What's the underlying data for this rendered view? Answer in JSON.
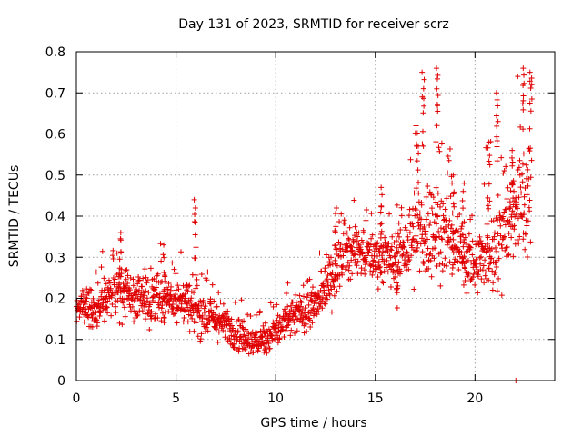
{
  "chart_data": {
    "type": "scatter",
    "title": "Day 131 of 2023, SRMTID for receiver scrz",
    "xlabel": "GPS time / hours",
    "ylabel": "SRMTID / TECUs",
    "xlim": [
      0,
      24
    ],
    "ylim": [
      0,
      0.8
    ],
    "xticks": [
      0,
      5,
      10,
      15,
      20
    ],
    "xtick_labels": [
      "0",
      "5",
      "10",
      "15",
      "20"
    ],
    "yticks": [
      0,
      0.1,
      0.2,
      0.3,
      0.4,
      0.5,
      0.6,
      0.7,
      0.8
    ],
    "ytick_labels": [
      "0",
      "0.1",
      "0.2",
      "0.3",
      "0.4",
      "0.5",
      "0.6",
      "0.7",
      "0.8"
    ],
    "grid": true,
    "marker": "+",
    "color": "#e00000",
    "series": [
      {
        "name": "SRMTID",
        "hourly_trend": {
          "x": [
            0,
            1,
            2,
            3,
            4,
            5,
            6,
            7,
            8,
            9,
            10,
            11,
            12,
            13,
            14,
            15,
            16,
            17,
            18,
            19,
            20,
            21,
            22,
            22.8
          ],
          "center": [
            0.18,
            0.17,
            0.22,
            0.2,
            0.2,
            0.2,
            0.17,
            0.15,
            0.12,
            0.09,
            0.12,
            0.16,
            0.18,
            0.27,
            0.32,
            0.3,
            0.29,
            0.35,
            0.38,
            0.33,
            0.28,
            0.33,
            0.42,
            0.45
          ],
          "spread": [
            0.05,
            0.06,
            0.07,
            0.07,
            0.07,
            0.07,
            0.07,
            0.06,
            0.05,
            0.04,
            0.05,
            0.06,
            0.06,
            0.07,
            0.07,
            0.07,
            0.08,
            0.15,
            0.15,
            0.1,
            0.09,
            0.13,
            0.15,
            0.15
          ]
        },
        "peaks": [
          {
            "x": 5.95,
            "y": 0.44
          },
          {
            "x": 2.2,
            "y": 0.36
          },
          {
            "x": 4.4,
            "y": 0.33
          },
          {
            "x": 13.0,
            "y": 0.42
          },
          {
            "x": 15.3,
            "y": 0.47
          },
          {
            "x": 16.1,
            "y": 0.34
          },
          {
            "x": 17.4,
            "y": 0.75
          },
          {
            "x": 18.1,
            "y": 0.76
          },
          {
            "x": 17.1,
            "y": 0.62
          },
          {
            "x": 18.9,
            "y": 0.5
          },
          {
            "x": 19.4,
            "y": 0.48
          },
          {
            "x": 21.1,
            "y": 0.7
          },
          {
            "x": 20.7,
            "y": 0.58
          },
          {
            "x": 22.4,
            "y": 0.76
          },
          {
            "x": 22.8,
            "y": 0.75
          },
          {
            "x": 21.9,
            "y": 0.56
          }
        ],
        "outliers": [
          {
            "x": 22.05,
            "y": 0.0
          }
        ],
        "point_count": 1600
      }
    ]
  }
}
